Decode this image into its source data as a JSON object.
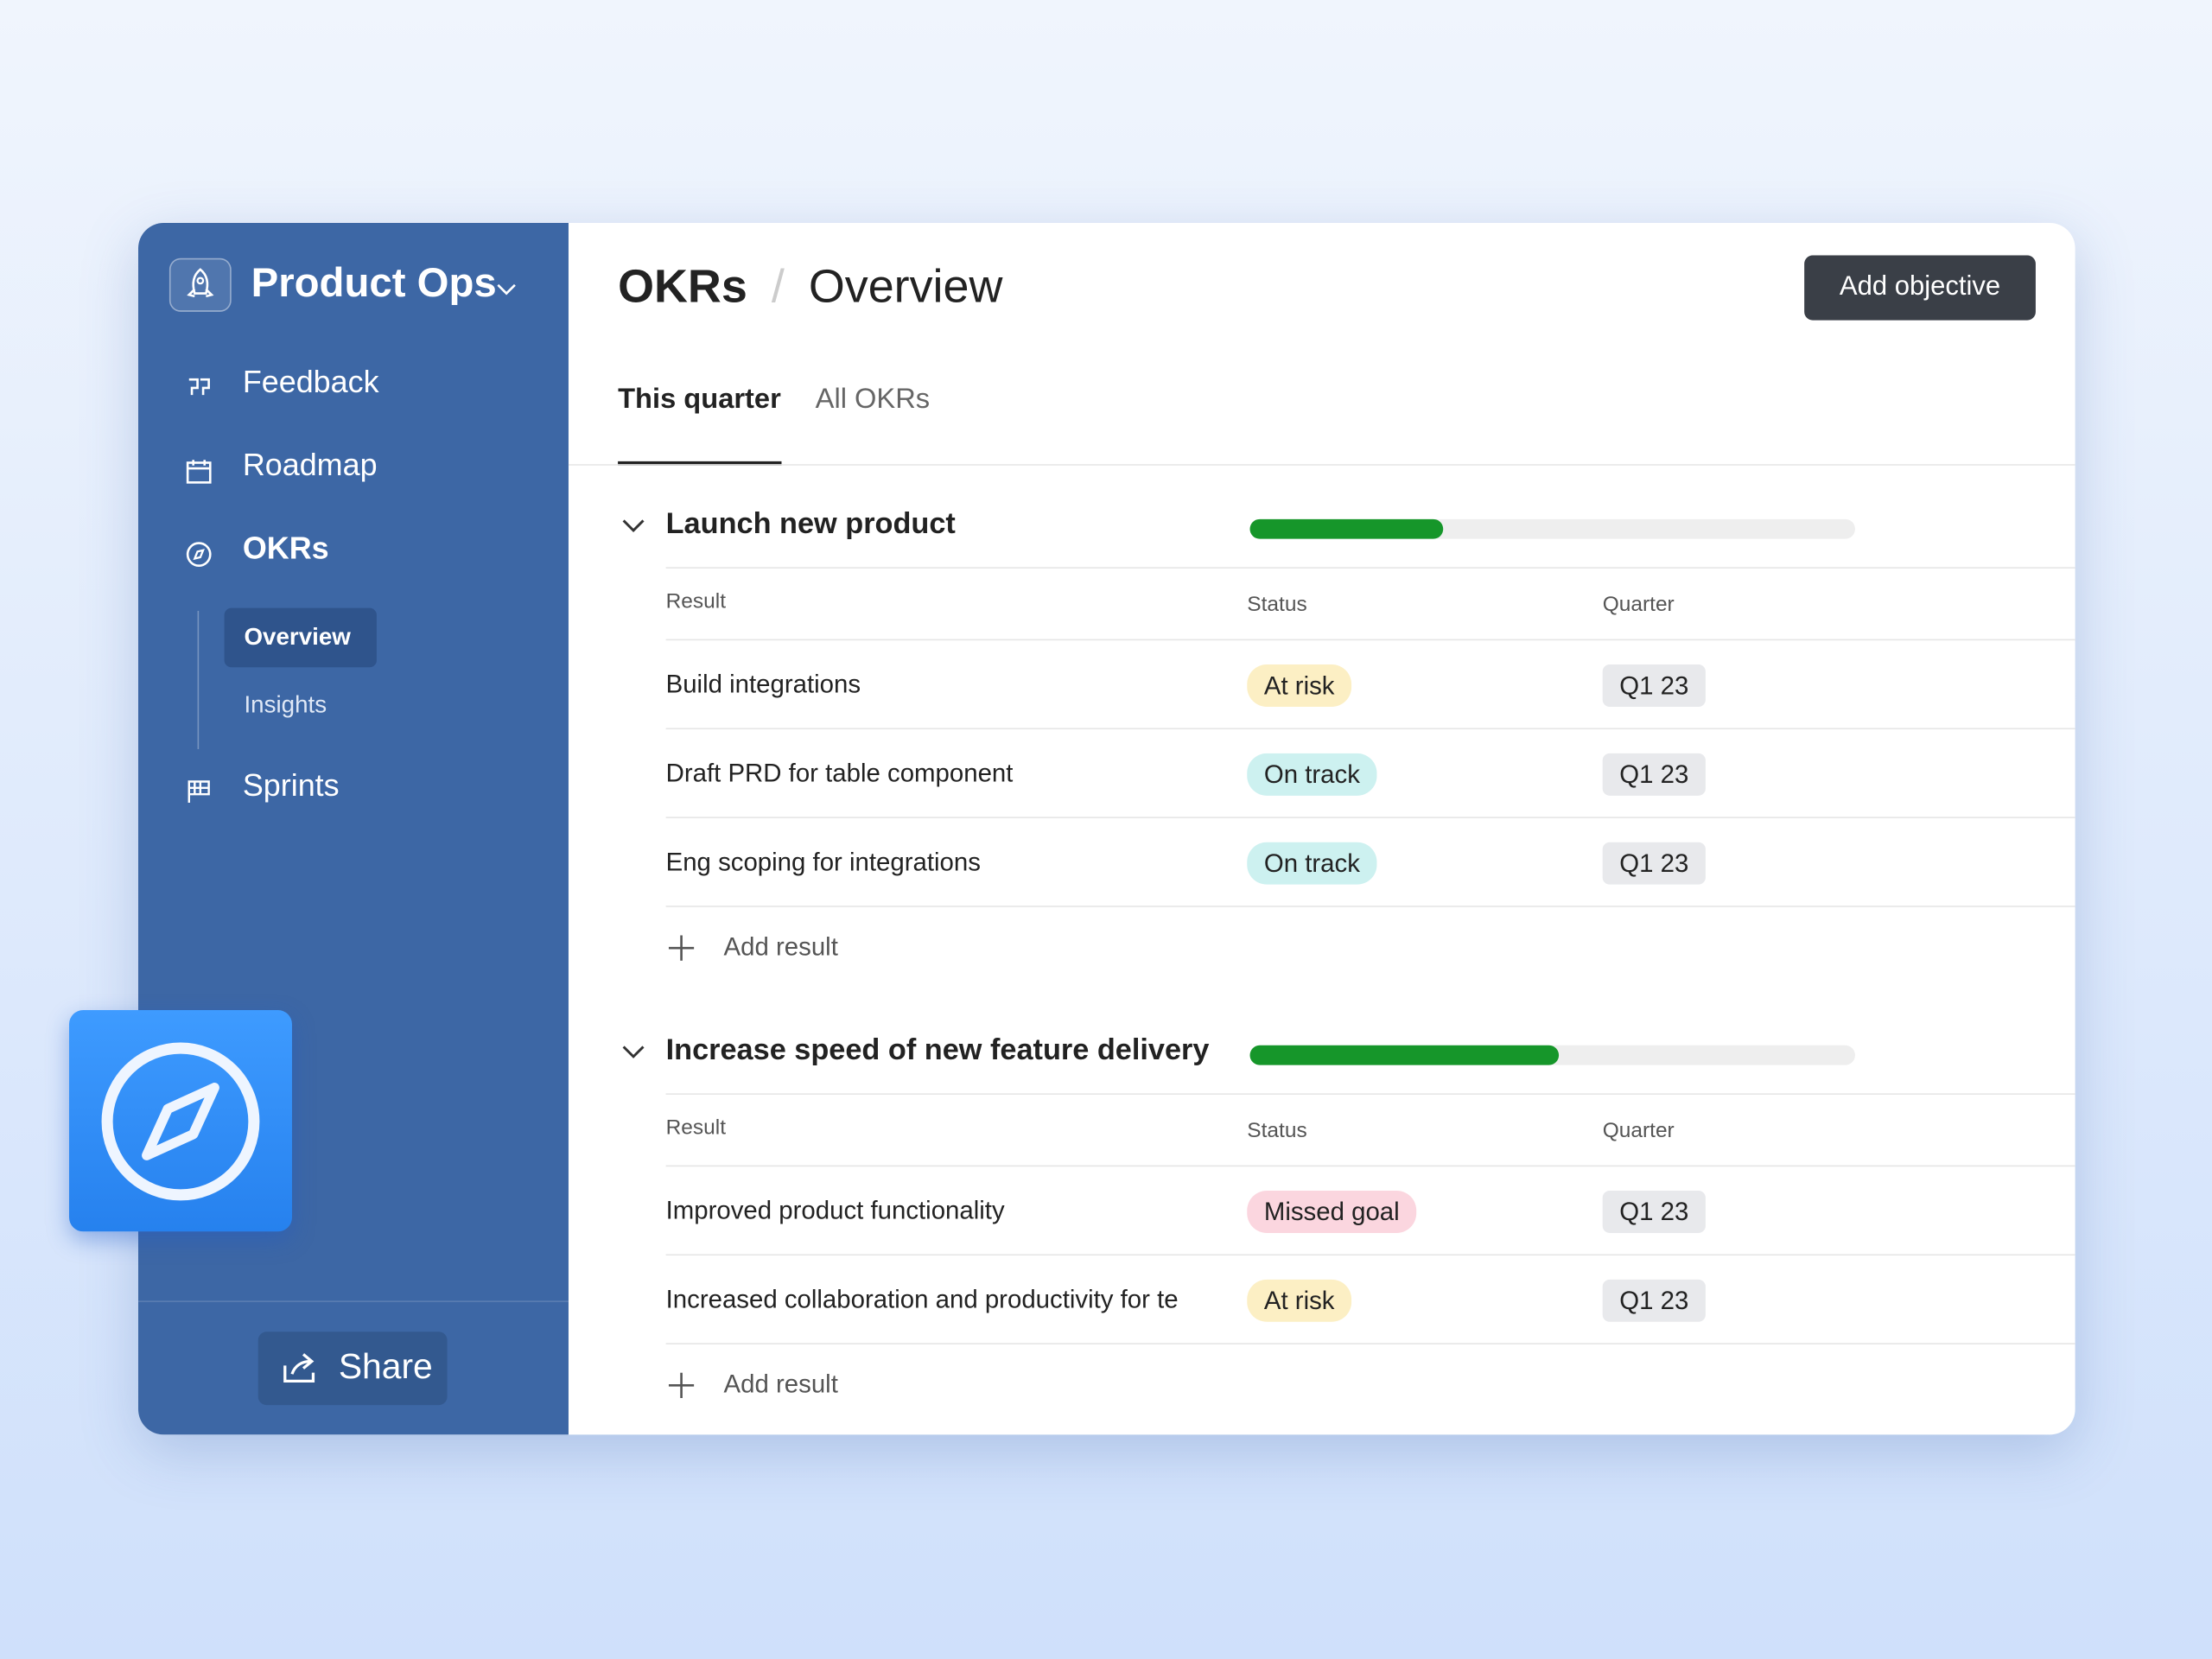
{
  "sidebar": {
    "workspace": "Product Ops",
    "nav": [
      {
        "label": "Feedback",
        "icon": "quote"
      },
      {
        "label": "Roadmap",
        "icon": "calendar"
      },
      {
        "label": "OKRs",
        "icon": "compass",
        "active": true,
        "children": [
          {
            "label": "Overview",
            "active": true
          },
          {
            "label": "Insights"
          }
        ]
      },
      {
        "label": "Sprints",
        "icon": "flag"
      }
    ],
    "share": "Share"
  },
  "header": {
    "breadcrumb": [
      "OKRs",
      "Overview"
    ],
    "separator": "/",
    "action": "Add objective"
  },
  "tabs": [
    {
      "label": "This quarter",
      "active": true
    },
    {
      "label": "All OKRs"
    }
  ],
  "objectives": [
    {
      "title": "Launch new product",
      "progress": 32,
      "columns": [
        "Result",
        "Status",
        "Quarter"
      ],
      "results": [
        {
          "name": "Build integrations",
          "status": "At risk",
          "status_color": "#fcefc4",
          "quarter": "Q1 23"
        },
        {
          "name": "Draft PRD for table component",
          "status": "On track",
          "status_color": "#cdf1f0",
          "quarter": "Q1 23"
        },
        {
          "name": "Eng scoping for integrations",
          "status": "On track",
          "status_color": "#cdf1f0",
          "quarter": "Q1 23"
        }
      ],
      "add": "Add result"
    },
    {
      "title": "Increase speed of new feature delivery",
      "progress": 51,
      "columns": [
        "Result",
        "Status",
        "Quarter"
      ],
      "results": [
        {
          "name": "Improved product functionality",
          "status": "Missed goal",
          "status_color": "#fbd6df",
          "quarter": "Q1 23"
        },
        {
          "name": "Increased collaboration and productivity for te",
          "status": "At risk",
          "status_color": "#fcefc4",
          "quarter": "Q1 23"
        }
      ],
      "add": "Add result"
    }
  ]
}
